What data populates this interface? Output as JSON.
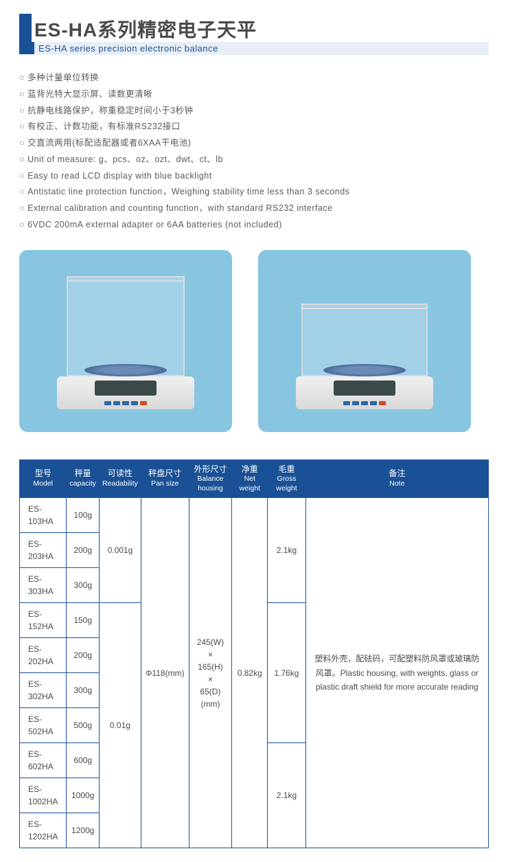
{
  "header": {
    "title_cn": "ES-HA系列精密电子天平",
    "title_en": "ES-HA series precision electronic balance",
    "accent_color": "#1a5196",
    "sub_bg": "#e8eef6"
  },
  "features_cn": [
    "多种计量单位转换",
    "蓝背光特大显示屏、读数更清晰",
    "抗静电线路保护，称重稳定时间小于3秒钟",
    "有校正、计数功能，有标准RS232接口",
    "交直流两用(标配适配器或者6XAA干电池)"
  ],
  "features_en": [
    "Unit of measure: g、pcs、oz、ozt、dwt、ct、lb",
    "Easy to read LCD display with blue backlight",
    "Antistatic line protection function，Weighing stability time less than 3 seconds",
    "External calibration and counting function，with standard RS232 interface",
    "6VDC 200mA external adapter or 6AA batteries (not included)"
  ],
  "images": {
    "box_bg": "#87c5e0",
    "box_radius": 12
  },
  "table": {
    "header_bg": "#1a5196",
    "header_fg": "#ffffff",
    "border_color": "#1a5196",
    "columns": [
      {
        "cn": "型号",
        "en": "Model"
      },
      {
        "cn": "秤量",
        "en": "capacity"
      },
      {
        "cn": "可读性",
        "en": "Readability"
      },
      {
        "cn": "秤盘尺寸",
        "en": "Pan size"
      },
      {
        "cn": "外形尺寸",
        "en": "Balance housing"
      },
      {
        "cn": "净重",
        "en": "Net weight"
      },
      {
        "cn": "毛重",
        "en": "Gross weight"
      },
      {
        "cn": "备注",
        "en": "Note"
      }
    ],
    "rows": [
      {
        "model": "ES-103HA",
        "capacity": "100g"
      },
      {
        "model": "ES-203HA",
        "capacity": "200g"
      },
      {
        "model": "ES-303HA",
        "capacity": "300g"
      },
      {
        "model": "ES-152HA",
        "capacity": "150g"
      },
      {
        "model": "ES-202HA",
        "capacity": "200g"
      },
      {
        "model": "ES-302HA",
        "capacity": "300g"
      },
      {
        "model": "ES-502HA",
        "capacity": "500g"
      },
      {
        "model": "ES-602HA",
        "capacity": "600g"
      },
      {
        "model": "ES-1002HA",
        "capacity": "1000g"
      },
      {
        "model": "ES-1202HA",
        "capacity": "1200g"
      }
    ],
    "readability_group1": "0.001g",
    "readability_group2": "0.01g",
    "pan_size": "Φ118(mm)",
    "housing": "245(W)\n×\n165(H)\n×\n65(D)(mm)",
    "net_weight": "0.82kg",
    "gross_weight_1": "2.1kg",
    "gross_weight_2": "1.76kg",
    "gross_weight_3": "2.1kg",
    "note": "塑料外壳，配砝码，可配塑料防风罩或玻璃防风罩。Plastic housing, with weights, glass or plastic draft shield for more accurate reading"
  }
}
